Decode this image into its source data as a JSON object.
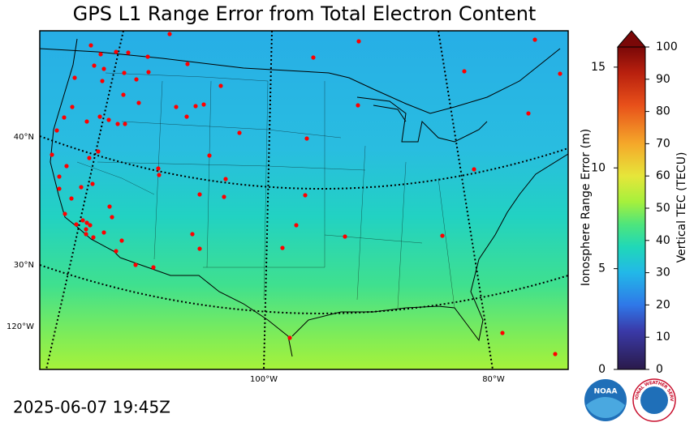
{
  "title": "GPS L1 Range Error from Total Electron Content",
  "timestamp": "2025-06-07 19:45Z",
  "map": {
    "graticule_labels": [
      "40°N",
      "30°N",
      "120°W",
      "100°W",
      "80°W"
    ]
  },
  "colorbar": {
    "left_label": "Ionosphere Range Error (m)",
    "right_label": "Vertical TEC (TECU)",
    "range_error_lim": [
      0,
      16
    ],
    "range_error_ticks": [
      0,
      5,
      10,
      15
    ],
    "tec_lim": [
      0,
      100
    ],
    "tec_ticks": [
      0,
      10,
      20,
      30,
      40,
      50,
      60,
      70,
      80,
      90,
      100
    ]
  },
  "logos": {
    "noaa": "NOAA",
    "nws": "NATIONAL WEATHER SERVICE"
  }
}
